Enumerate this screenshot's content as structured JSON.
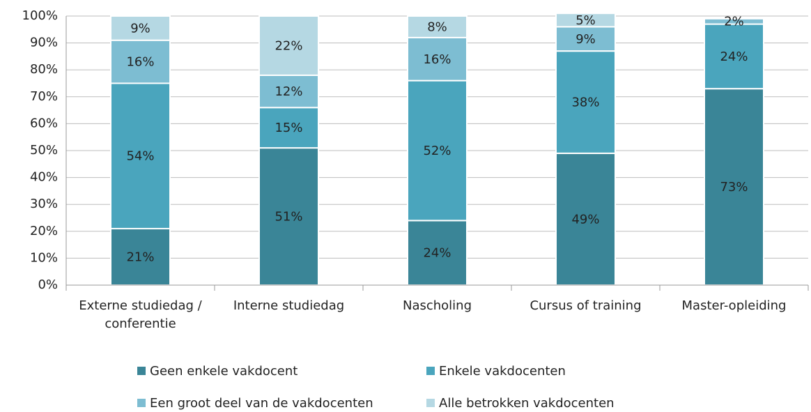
{
  "chart_data": {
    "type": "stacked_bar",
    "categories": [
      "Externe studiedag / conferentie",
      "Interne studiedag",
      "Nascholing",
      "Cursus of training",
      "Master-opleiding"
    ],
    "series": [
      {
        "name": "Geen enkele vakdocent",
        "color": "#3a8597",
        "values": [
          21,
          51,
          24,
          49,
          73
        ],
        "value_labels": [
          "21%",
          "51%",
          "24%",
          "49%",
          "73%"
        ]
      },
      {
        "name": "Enkele vakdocenten",
        "color": "#4aa5bd",
        "values": [
          54,
          15,
          52,
          38,
          24
        ],
        "value_labels": [
          "54%",
          "15%",
          "52%",
          "38%",
          "24%"
        ]
      },
      {
        "name": "Een groot deel van de vakdocenten",
        "color": "#7dbdd2",
        "values": [
          16,
          12,
          16,
          9,
          2
        ],
        "value_labels": [
          "16%",
          "12%",
          "16%",
          "9%",
          "2%"
        ]
      },
      {
        "name": "Alle betrokken vakdocenten",
        "color": "#b5d8e3",
        "values": [
          9,
          22,
          8,
          5,
          null
        ],
        "value_labels": [
          "9%",
          "22%",
          "8%",
          "5%",
          null
        ]
      }
    ],
    "ylim": [
      0,
      100
    ],
    "yticks": [
      {
        "value": 0,
        "label": "0%"
      },
      {
        "value": 10,
        "label": "10%"
      },
      {
        "value": 20,
        "label": "20%"
      },
      {
        "value": 30,
        "label": "30%"
      },
      {
        "value": 40,
        "label": "40%"
      },
      {
        "value": 50,
        "label": "50%"
      },
      {
        "value": 60,
        "label": "60%"
      },
      {
        "value": 70,
        "label": "70%"
      },
      {
        "value": 80,
        "label": "80%"
      },
      {
        "value": 90,
        "label": "90%"
      },
      {
        "value": 100,
        "label": "100%"
      }
    ],
    "grid": true
  }
}
